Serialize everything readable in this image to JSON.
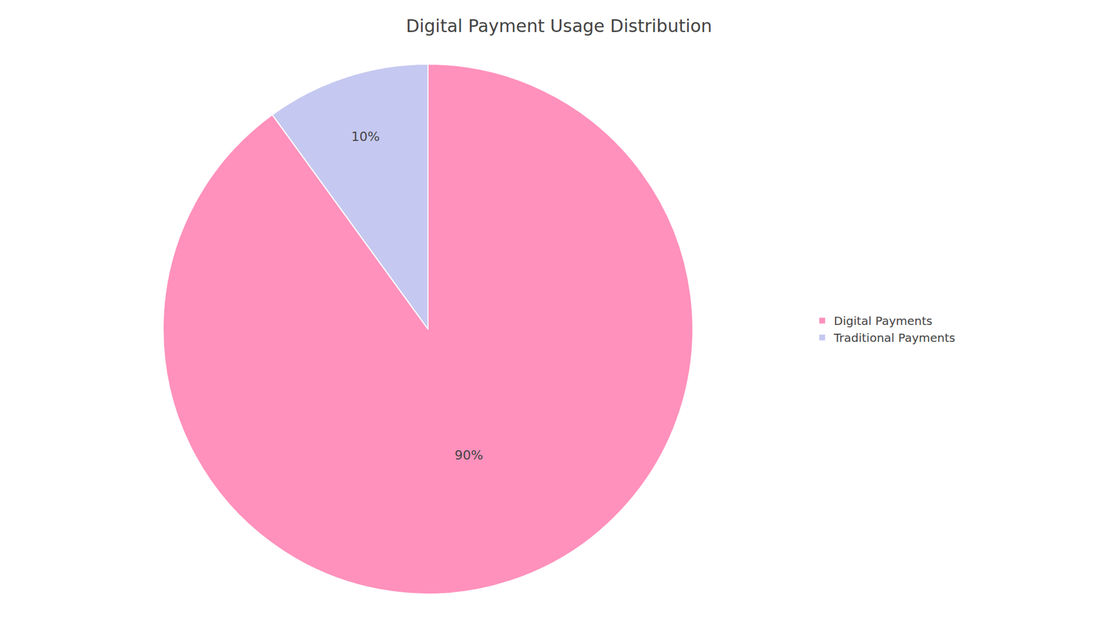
{
  "chart_data": {
    "type": "pie",
    "title": "Digital Payment Usage Distribution",
    "categories": [
      "Digital Payments",
      "Traditional Payments"
    ],
    "values": [
      90,
      10
    ],
    "value_labels": [
      "90%",
      "10%"
    ],
    "colors": [
      "#FF91BC",
      "#C5C8F0"
    ],
    "data_labels": true,
    "legend": "right"
  }
}
